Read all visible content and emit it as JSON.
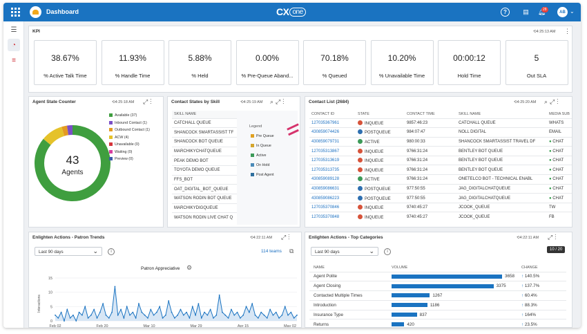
{
  "topbar": {
    "title": "Dashboard",
    "brand": "CX",
    "brand_suffix": "one",
    "badge": "28",
    "avatar": "AB"
  },
  "kpi": {
    "title": "KPI",
    "time": "4:25:13 AM",
    "items": [
      {
        "value": "38.67%",
        "label": "% Active Talk Time"
      },
      {
        "value": "11.93%",
        "label": "% Handle Time"
      },
      {
        "value": "5.88%",
        "label": "% Held"
      },
      {
        "value": "0.00%",
        "label": "% Pre-Queue Aband..."
      },
      {
        "value": "70.18%",
        "label": "% Queued"
      },
      {
        "value": "10.20%",
        "label": "% Unavailable Time"
      },
      {
        "value": "00:00:12",
        "label": "Hold Time"
      },
      {
        "value": "5",
        "label": "Out SLA"
      }
    ]
  },
  "agent_state": {
    "title": "Agent State Counter",
    "time": "4:25:18 AM",
    "count": "43",
    "count_label": "Agents",
    "legend": [
      {
        "label": "Available (37)",
        "color": "#3f9e3f",
        "value": 37
      },
      {
        "label": "Inbound Contact (1)",
        "color": "#7b4fc6",
        "value": 1
      },
      {
        "label": "Outbound Contact (1)",
        "color": "#e39a22",
        "value": 1
      },
      {
        "label": "ACW (4)",
        "color": "#e5c22a",
        "value": 4
      },
      {
        "label": "Unavailable (0)",
        "color": "#d6343a",
        "value": 0
      },
      {
        "label": "Waiting (0)",
        "color": "#d63da0",
        "value": 0
      },
      {
        "label": "Preview (0)",
        "color": "#3c5aa8",
        "value": 0
      }
    ]
  },
  "contact_states": {
    "title": "Contact States by Skill",
    "time": "4:25:19 AM",
    "column": "SKILL NAME",
    "skills": [
      "CATCHALL QUEUE",
      "SHANCOCK SMARTASSIST TF",
      "SHANCOCK BOT QUEUE",
      "MARCHIKYCHATQUEUE",
      "PEAK DEMO BOT",
      "TOYOTA DEMO QUEUE",
      "FFS_BOT",
      "OAT_DIGITAL_BOT_QUEUE",
      "WATSON RODIN BOT QUEUE",
      "MARCHIKYDIGQUEUE",
      "WATSON RODIN LIVE CHAT Q"
    ],
    "legend_title": "Legend",
    "legend": [
      {
        "label": "Pre Queue",
        "color": "#e0a020"
      },
      {
        "label": "In Queue",
        "color": "#d4a52c"
      },
      {
        "label": "Active",
        "color": "#3c9a58"
      },
      {
        "label": "On Hold",
        "color": "#4a8ab8"
      },
      {
        "label": "Post Agent",
        "color": "#2f6f9e"
      }
    ]
  },
  "contact_list": {
    "title": "Contact List (2684)",
    "time": "4:25:20 AM",
    "columns": [
      "CONTACT ID",
      "STATE",
      "CONTACT TIME",
      "SKILL NAME",
      "MEDIA SUB"
    ],
    "rows": [
      {
        "id": "127035367961",
        "state": "INQUEUE",
        "color": "#d6533a",
        "time": "9857:46:23",
        "skill": "CATCHALL QUEUE",
        "media": "WHATS"
      },
      {
        "id": "430859074426",
        "state": "POSTQUEUE",
        "color": "#2e6fb0",
        "time": "984:07:47",
        "skill": "NOLL DIGITAL",
        "media": "EMAIL"
      },
      {
        "id": "430859079731",
        "state": "ACTIVE",
        "color": "#3c9a58",
        "time": "980:00:33",
        "skill": "SHANCOCK SMARTASSIST TRAVEL DF",
        "media": "CHAT"
      },
      {
        "id": "127035313867",
        "state": "INQUEUE",
        "color": "#d6533a",
        "time": "9766:31:24",
        "skill": "BENTLEY BOT QUEUE",
        "media": "CHAT"
      },
      {
        "id": "127035313619",
        "state": "INQUEUE",
        "color": "#d6533a",
        "time": "9766:31:24",
        "skill": "BENTLEY BOT QUEUE",
        "media": "CHAT"
      },
      {
        "id": "127035313735",
        "state": "INQUEUE",
        "color": "#d6533a",
        "time": "9766:31:24",
        "skill": "BENTLEY BOT QUEUE",
        "media": "CHAT"
      },
      {
        "id": "430859089128",
        "state": "ACTIVE",
        "color": "#3c9a58",
        "time": "9766:31:24",
        "skill": "ONETELCO BOT - TECHNICAL ENABL",
        "media": "CHAT"
      },
      {
        "id": "430859086631",
        "state": "POSTQUEUE",
        "color": "#2e6fb0",
        "time": "977:50:55",
        "skill": "JAG_DIGITALCHATQUEUE",
        "media": "CHAT"
      },
      {
        "id": "430859086223",
        "state": "POSTQUEUE",
        "color": "#2e6fb0",
        "time": "977:50:55",
        "skill": "JAG_DIGITALCHATQUEUE",
        "media": "CHAT"
      },
      {
        "id": "127035370846",
        "state": "INQUEUE",
        "color": "#d6533a",
        "time": "9740:45:27",
        "skill": "JCOOK_QUEUE",
        "media": "TW"
      },
      {
        "id": "127035370848",
        "state": "INQUEUE",
        "color": "#d6533a",
        "time": "9740:45:27",
        "skill": "JCOOK_QUEUE",
        "media": "FB"
      }
    ]
  },
  "patron_trends": {
    "title": "Enlighten Actions - Patron Trends",
    "time": "4:22:11 AM",
    "period": "Last 90 days",
    "teams": "114 teams",
    "chart_title": "Patron Appreciative"
  },
  "top_categories": {
    "title": "Enlighten Actions - Top Categories",
    "time": "4:22:11 AM",
    "period": "Last 90 days",
    "pager": "10 / 20",
    "columns": [
      "NAME",
      "VOLUME",
      "CHANGE"
    ],
    "rows": [
      {
        "name": "Agent Polite",
        "volume": 3658,
        "change": "140.5%"
      },
      {
        "name": "Agent Closing",
        "volume": 3375,
        "change": "137.7%"
      },
      {
        "name": "Contacted Multiple Times",
        "volume": 1267,
        "change": "60.4%"
      },
      {
        "name": "Introduction",
        "volume": 1186,
        "change": "88.3%"
      },
      {
        "name": "Insurance Type",
        "volume": 837,
        "change": "164%"
      },
      {
        "name": "Returns",
        "volume": 420,
        "change": "23.5%"
      }
    ]
  },
  "chart_data": {
    "type": "line",
    "title": "Patron Appreciative",
    "xlabel": "",
    "ylabel": "Interactions",
    "ylim": [
      0,
      15
    ],
    "yticks": [
      0,
      5,
      10,
      15
    ],
    "xticks": [
      "Feb 02",
      "Feb 20",
      "Mar 10",
      "Mar 29",
      "Apr 15",
      "May 02"
    ],
    "values": [
      2,
      1,
      3,
      0,
      4,
      1,
      2,
      0,
      3,
      2,
      5,
      1,
      2,
      4,
      1,
      3,
      6,
      2,
      1,
      3,
      12,
      2,
      4,
      1,
      5,
      2,
      3,
      1,
      6,
      3,
      2,
      1,
      4,
      2,
      3,
      5,
      1,
      2,
      7,
      3,
      1,
      2,
      4,
      2,
      3,
      1,
      5,
      2,
      6,
      1,
      3,
      2,
      4,
      1,
      2,
      9,
      3,
      2,
      1,
      4,
      2,
      3,
      1,
      2,
      5,
      3,
      6,
      2,
      1,
      3,
      2,
      1,
      4,
      2,
      3,
      1,
      2,
      5,
      2,
      3,
      1,
      2
    ]
  }
}
